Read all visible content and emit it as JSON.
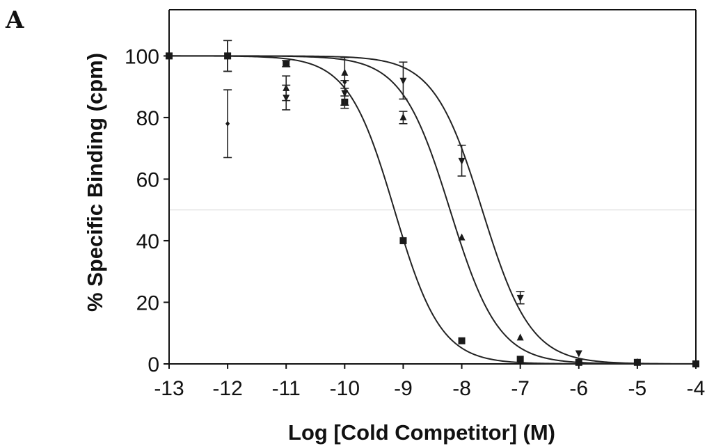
{
  "panel_label": "A",
  "chart_data": {
    "type": "scatter",
    "title": "",
    "xlabel": "Log [Cold Competitor] (M)",
    "ylabel": "% Specific Binding (cpm)",
    "xlim": [
      -13,
      -4
    ],
    "ylim": [
      0,
      115
    ],
    "xticks": [
      -13,
      -12,
      -11,
      -10,
      -9,
      -8,
      -7,
      -6,
      -5,
      -4
    ],
    "yticks": [
      0,
      20,
      40,
      60,
      80,
      100
    ],
    "grid": false,
    "legend": "none",
    "reference_line_y": 50,
    "series": [
      {
        "marker": "square",
        "x": [
          -13,
          -12,
          -11,
          -10,
          -9,
          -8,
          -7,
          -6,
          -5,
          -4
        ],
        "y": [
          100,
          100,
          97.5,
          85,
          40,
          7.5,
          1.5,
          0.5,
          0.5,
          0
        ],
        "err": [
          0,
          5,
          1,
          2,
          0,
          0,
          0,
          0,
          0,
          0
        ],
        "fit_logIC50": -9.15,
        "fit_hill": 1.1
      },
      {
        "marker": "triangle-up",
        "x": [
          -13,
          -12,
          -11,
          -10,
          -9,
          -8,
          -7,
          -6,
          -5,
          -4
        ],
        "y": [
          100,
          100,
          89.5,
          94.5,
          80,
          41,
          8.5,
          0.5,
          0.5,
          0
        ],
        "err": [
          0,
          5,
          4,
          5,
          2,
          0,
          0,
          0,
          0,
          0
        ],
        "fit_logIC50": -8.2,
        "fit_hill": 1.05
      },
      {
        "marker": "triangle-down",
        "x": [
          -13,
          -12,
          -11,
          -10,
          -9,
          -8,
          -7,
          -6,
          -5,
          -4
        ],
        "y": [
          100,
          100,
          86.5,
          88,
          92,
          66,
          21.5,
          3.5,
          0.5,
          0
        ],
        "err": [
          0,
          5,
          4,
          4,
          6,
          5,
          2,
          0,
          0,
          0
        ],
        "fit_logIC50": -7.65,
        "fit_hill": 1.05
      },
      {
        "marker": "diamond",
        "x": [
          -13,
          -12,
          -10
        ],
        "y": [
          100,
          78,
          91.5
        ],
        "err": [
          0,
          11,
          0
        ],
        "fit_logIC50": null,
        "fit_hill": null
      }
    ]
  }
}
